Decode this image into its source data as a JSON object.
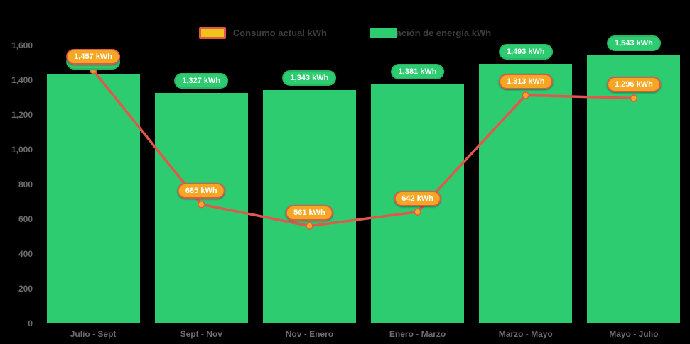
{
  "legend": {
    "items": [
      {
        "label": "Consumo actual kWh",
        "series_type": "line",
        "swatch_fill": "#f0c419",
        "swatch_border": "#e2574c"
      },
      {
        "label": "Generación de energía kWh",
        "series_type": "bar",
        "swatch_fill": "#2ecc71"
      }
    ],
    "position": "top-center"
  },
  "chart_data": {
    "type": "bar+line",
    "categories": [
      "Julio - Sept",
      "Sept - Nov",
      "Nov - Enero",
      "Enero - Marzo",
      "Marzo - Mayo",
      "Mayo - Julio"
    ],
    "series": [
      {
        "name": "Generación de energía kWh",
        "type": "bar",
        "color": "#2ecc71",
        "values": [
          1437,
          1327,
          1343,
          1381,
          1493,
          1543
        ],
        "labels": [
          "1,437 kWh",
          "1,327 kWh",
          "1,343 kWh",
          "1,381 kWh",
          "1,493 kWh",
          "1,543 kWh"
        ],
        "label_hidden": [
          true,
          false,
          false,
          false,
          false,
          false
        ]
      },
      {
        "name": "Consumo actual kWh",
        "type": "line",
        "color": "#e2574c",
        "marker_color": "#f5a623",
        "values": [
          1457,
          685,
          561,
          642,
          1313,
          1296
        ],
        "labels": [
          "1,457 kWh",
          "685 kWh",
          "561 kWh",
          "642 kWh",
          "1,313 kWh",
          "1,296 kWh"
        ]
      }
    ],
    "ylim": [
      0,
      1600
    ],
    "ytick_step": 200,
    "yticks": [
      "0",
      "200",
      "400",
      "600",
      "800",
      "1,000",
      "1,200",
      "1,400",
      "1,600"
    ],
    "grid": false,
    "legend_position": "top-center"
  },
  "colors": {
    "background": "#000000",
    "bar": "#2ecc71",
    "line": "#e2574c",
    "marker": "#f5a623",
    "pill_bar_bg": "#2ecc71",
    "pill_line_bg": "#f5a623",
    "pill_line_border": "#e2574c",
    "axis_text": "#6d6d6d",
    "legend_text": "#3e3e3e"
  }
}
